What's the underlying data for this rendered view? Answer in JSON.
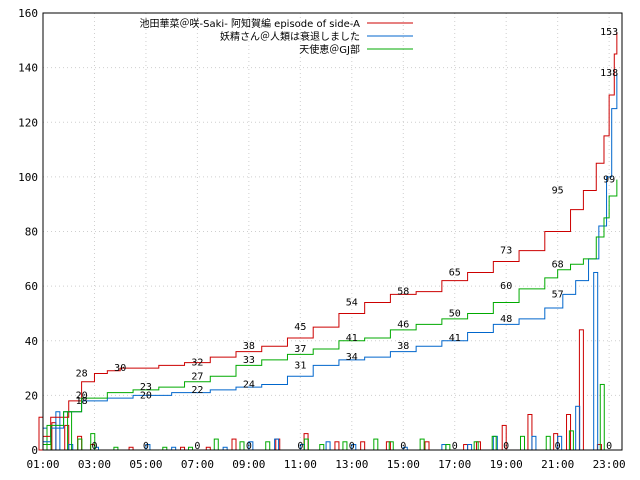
{
  "chart_data": {
    "type": "line",
    "ylim": [
      0,
      160
    ],
    "yticks": [
      "0",
      "20",
      "40",
      "60",
      "80",
      "100",
      "120",
      "140",
      "160"
    ],
    "xlim": [
      1,
      23.5
    ],
    "xticks": [
      "01:00",
      "03:00",
      "05:00",
      "07:00",
      "09:00",
      "11:00",
      "13:00",
      "15:00",
      "17:00",
      "19:00",
      "21:00",
      "23:00"
    ],
    "series": [
      {
        "name": "池田華菜＠咲-Saki- 阿知賀編 episode of side-A",
        "color": "#cc0000",
        "cumulative": [
          [
            1.0,
            5
          ],
          [
            1.3,
            12
          ],
          [
            2.0,
            18
          ],
          [
            2.5,
            25
          ],
          [
            3.0,
            28
          ],
          [
            3.5,
            29
          ],
          [
            4.0,
            30
          ],
          [
            5.5,
            31
          ],
          [
            6.5,
            32
          ],
          [
            7.5,
            34
          ],
          [
            8.5,
            36
          ],
          [
            9.5,
            38
          ],
          [
            10.5,
            41
          ],
          [
            11.5,
            45
          ],
          [
            12.5,
            50
          ],
          [
            13.5,
            54
          ],
          [
            14.5,
            57
          ],
          [
            15.5,
            58
          ],
          [
            16.5,
            62
          ],
          [
            17.5,
            65
          ],
          [
            18.5,
            69
          ],
          [
            19.5,
            73
          ],
          [
            20.5,
            80
          ],
          [
            21.5,
            88
          ],
          [
            22.0,
            95
          ],
          [
            22.5,
            105
          ],
          [
            22.8,
            115
          ],
          [
            23.0,
            130
          ],
          [
            23.2,
            145
          ],
          [
            23.3,
            153
          ]
        ],
        "labels": [
          [
            2.5,
            28
          ],
          [
            4.0,
            30
          ],
          [
            7.0,
            32
          ],
          [
            9.0,
            38
          ],
          [
            11.0,
            45
          ],
          [
            13.0,
            54
          ],
          [
            15.0,
            58
          ],
          [
            17.0,
            65
          ],
          [
            19.0,
            73
          ],
          [
            21.0,
            95
          ],
          [
            23.0,
            153
          ]
        ],
        "bars": [
          [
            1,
            12
          ],
          [
            1.5,
            10
          ],
          [
            2,
            9
          ],
          [
            2.5,
            5
          ],
          [
            3,
            2
          ],
          [
            4.5,
            1
          ],
          [
            6.5,
            1
          ],
          [
            7.5,
            1
          ],
          [
            8.5,
            4
          ],
          [
            10.2,
            4
          ],
          [
            11.3,
            6
          ],
          [
            12.5,
            3
          ],
          [
            13.5,
            3
          ],
          [
            14.5,
            3
          ],
          [
            16,
            3
          ],
          [
            17.5,
            2
          ],
          [
            18,
            3
          ],
          [
            19,
            9
          ],
          [
            20,
            13
          ],
          [
            21,
            6
          ],
          [
            21.5,
            13
          ],
          [
            22,
            44
          ],
          [
            22.7,
            2
          ]
        ]
      },
      {
        "name": "妖精さん＠人類は衰退しました",
        "color": "#0066cc",
        "cumulative": [
          [
            1.0,
            3
          ],
          [
            1.3,
            8
          ],
          [
            1.8,
            14
          ],
          [
            2.5,
            18
          ],
          [
            3.5,
            19
          ],
          [
            4.5,
            20
          ],
          [
            6,
            21
          ],
          [
            7.5,
            22
          ],
          [
            8.5,
            23
          ],
          [
            9.5,
            24
          ],
          [
            10.5,
            27
          ],
          [
            11.5,
            31
          ],
          [
            12.5,
            33
          ],
          [
            13.5,
            34
          ],
          [
            14.5,
            36
          ],
          [
            15.5,
            38
          ],
          [
            16.5,
            40
          ],
          [
            17.5,
            43
          ],
          [
            18.5,
            46
          ],
          [
            19.5,
            48
          ],
          [
            20.5,
            52
          ],
          [
            21.2,
            57
          ],
          [
            21.7,
            62
          ],
          [
            22.2,
            70
          ],
          [
            22.6,
            82
          ],
          [
            22.9,
            100
          ],
          [
            23.1,
            125
          ],
          [
            23.3,
            138
          ]
        ],
        "labels": [
          [
            2.5,
            18
          ],
          [
            5.0,
            20
          ],
          [
            7.0,
            22
          ],
          [
            9.0,
            24
          ],
          [
            11.0,
            31
          ],
          [
            13.0,
            34
          ],
          [
            15.0,
            38
          ],
          [
            17.0,
            41
          ],
          [
            19.0,
            48
          ],
          [
            21.0,
            57
          ],
          [
            23.0,
            138
          ]
        ],
        "bars": [
          [
            1,
            8
          ],
          [
            1.5,
            14
          ],
          [
            2,
            2
          ],
          [
            3,
            1
          ],
          [
            5,
            2
          ],
          [
            6,
            1
          ],
          [
            8,
            1
          ],
          [
            9,
            3
          ],
          [
            10,
            4
          ],
          [
            11,
            2
          ],
          [
            12,
            3
          ],
          [
            13,
            2
          ],
          [
            15,
            1
          ],
          [
            16.5,
            2
          ],
          [
            17.5,
            2
          ],
          [
            18.5,
            5
          ],
          [
            20,
            5
          ],
          [
            21,
            5
          ],
          [
            21.7,
            16
          ],
          [
            22.4,
            65
          ]
        ]
      },
      {
        "name": "天使恵＠GJ部",
        "color": "#00aa00",
        "cumulative": [
          [
            1.0,
            2
          ],
          [
            1.3,
            9
          ],
          [
            1.8,
            14
          ],
          [
            2.5,
            19
          ],
          [
            3.5,
            21
          ],
          [
            4.5,
            22
          ],
          [
            5.5,
            23
          ],
          [
            6.5,
            25
          ],
          [
            7.5,
            27
          ],
          [
            8.5,
            31
          ],
          [
            9.5,
            33
          ],
          [
            10.5,
            35
          ],
          [
            11.5,
            37
          ],
          [
            12.5,
            40
          ],
          [
            13.5,
            41
          ],
          [
            14.5,
            44
          ],
          [
            15.5,
            46
          ],
          [
            16.5,
            48
          ],
          [
            17.5,
            50
          ],
          [
            18.5,
            54
          ],
          [
            19.5,
            59
          ],
          [
            20.5,
            63
          ],
          [
            21.0,
            66
          ],
          [
            21.5,
            68
          ],
          [
            22.0,
            70
          ],
          [
            22.5,
            78
          ],
          [
            22.8,
            85
          ],
          [
            23.0,
            93
          ],
          [
            23.3,
            99
          ]
        ],
        "labels": [
          [
            2.5,
            20
          ],
          [
            5.0,
            23
          ],
          [
            7.0,
            27
          ],
          [
            9.0,
            33
          ],
          [
            11.0,
            37
          ],
          [
            13.0,
            41
          ],
          [
            15.0,
            46
          ],
          [
            17.0,
            50
          ],
          [
            19.0,
            60
          ],
          [
            21.0,
            68
          ],
          [
            23.0,
            99
          ]
        ],
        "bars": [
          [
            1,
            9
          ],
          [
            1.8,
            14
          ],
          [
            2.2,
            4
          ],
          [
            2.7,
            6
          ],
          [
            3.6,
            1
          ],
          [
            5.5,
            1
          ],
          [
            6.5,
            1
          ],
          [
            7.5,
            4
          ],
          [
            8.5,
            3
          ],
          [
            9.5,
            3
          ],
          [
            11,
            4
          ],
          [
            11.6,
            2
          ],
          [
            12.5,
            3
          ],
          [
            13.7,
            4
          ],
          [
            14.3,
            3
          ],
          [
            15.5,
            4
          ],
          [
            16.5,
            2
          ],
          [
            17.6,
            3
          ],
          [
            18.3,
            5
          ],
          [
            19.4,
            5
          ],
          [
            20.4,
            5
          ],
          [
            21.3,
            7
          ],
          [
            22.5,
            24
          ]
        ]
      }
    ],
    "zero_labels": [
      [
        3,
        0
      ],
      [
        5,
        0
      ],
      [
        7,
        0
      ],
      [
        9,
        0
      ],
      [
        11,
        0
      ],
      [
        13,
        0
      ],
      [
        15,
        0
      ],
      [
        17,
        0
      ],
      [
        19,
        0
      ],
      [
        21,
        0
      ],
      [
        23,
        0
      ]
    ],
    "zero_text": "0"
  }
}
